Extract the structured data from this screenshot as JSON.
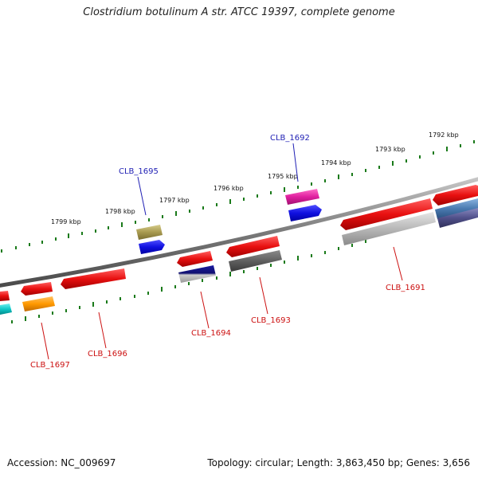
{
  "title": "Clostridium botulinum A str. ATCC 19397, complete genome",
  "footer": {
    "accession": "Accession: NC_009697",
    "summary": "Topology: circular; Length: 3,863,450 bp; Genes: 3,656"
  },
  "scale_labels": [
    "1799 kbp",
    "1798 kbp",
    "1797 kbp",
    "1796 kbp",
    "1795 kbp",
    "1794 kbp",
    "1793 kbp",
    "1792 kbp"
  ],
  "gene_labels": [
    {
      "text": "CLB_1692",
      "color": "#1f1fb4"
    },
    {
      "text": "CLB_1695",
      "color": "#1f1fb4"
    },
    {
      "text": "CLB_1691",
      "color": "#cc1111"
    },
    {
      "text": "CLB_1693",
      "color": "#cc1111"
    },
    {
      "text": "CLB_1694",
      "color": "#cc1111"
    },
    {
      "text": "CLB_1696",
      "color": "#cc1111"
    },
    {
      "text": "CLB_1697",
      "color": "#cc1111"
    }
  ],
  "colors": {
    "backbone": "#8a8a8a",
    "tick": "#1a7a1a",
    "forward_red": "#e81010",
    "forward_blue": "#1010e0",
    "forward_magenta": "#e020a0",
    "forward_olive": "#a89a50",
    "reverse_gray": "#b8b8b8",
    "reverse_darkgray": "#606060",
    "reverse_navy": "#101080",
    "orange": "#ff9900",
    "cyan": "#10c8c8",
    "steelblue": "#4a7ab0",
    "slate": "#50508a"
  }
}
